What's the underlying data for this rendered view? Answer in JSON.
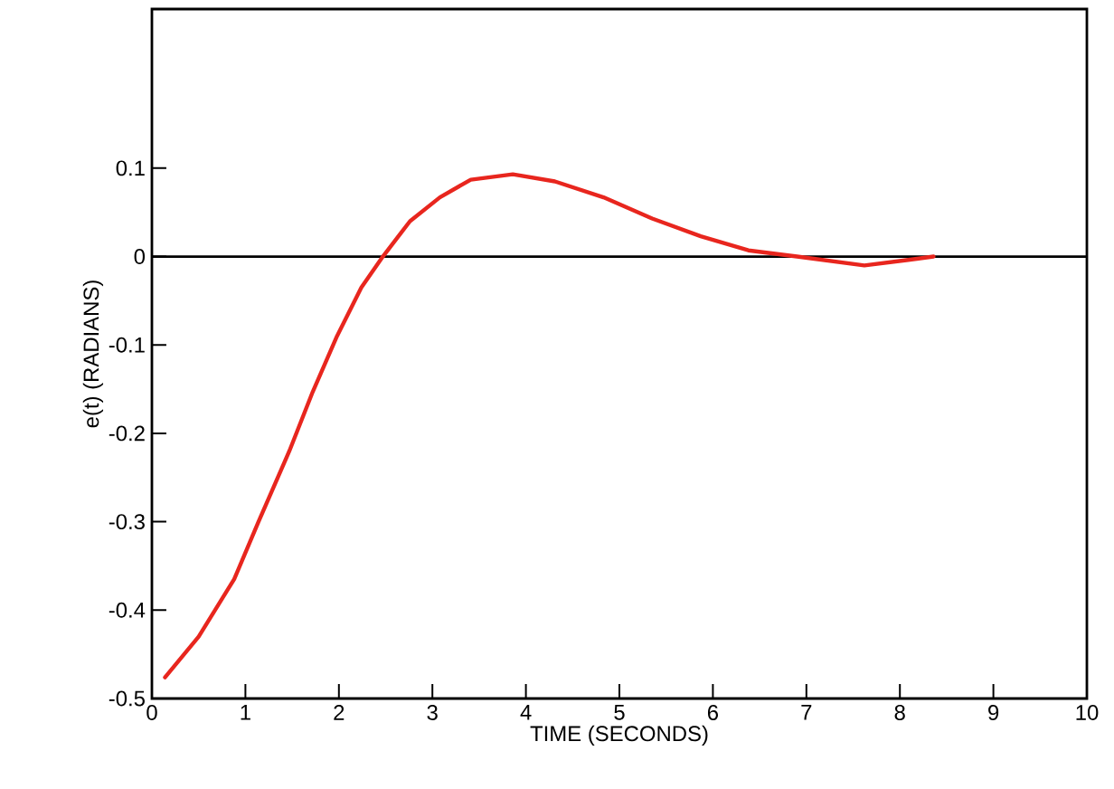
{
  "chart_data": {
    "type": "line",
    "xlabel": "TIME (SECONDS)",
    "ylabel": "e(t) (RADIANS)",
    "x": [
      0.14,
      0.5,
      0.88,
      1.14,
      1.47,
      1.72,
      1.98,
      2.24,
      2.47,
      2.76,
      3.08,
      3.41,
      3.86,
      4.31,
      4.83,
      5.35,
      5.87,
      6.38,
      6.9,
      7.62,
      8.07,
      8.36
    ],
    "series": [
      {
        "color": "#e8261e",
        "values": [
          -0.476,
          -0.43,
          -0.365,
          -0.3,
          -0.22,
          -0.153,
          -0.09,
          -0.035,
          0,
          0.04,
          0.067,
          0.087,
          0.093,
          0.085,
          0.067,
          0.043,
          0.023,
          0.007,
          0,
          -0.01,
          -0.004,
          0
        ]
      }
    ],
    "xlim": [
      0,
      10
    ],
    "ylim": [
      -0.5,
      0.28
    ],
    "xticks": [
      0,
      1,
      2,
      3,
      4,
      5,
      6,
      7,
      8,
      9,
      10
    ],
    "yticks": [
      -0.5,
      -0.4,
      -0.3,
      -0.2,
      -0.1,
      0,
      0.1
    ],
    "ref_lines": [
      {
        "axis": "y",
        "value": 0,
        "color": "#000000"
      }
    ],
    "grid": false,
    "marker": "none",
    "line_style": "solid"
  }
}
